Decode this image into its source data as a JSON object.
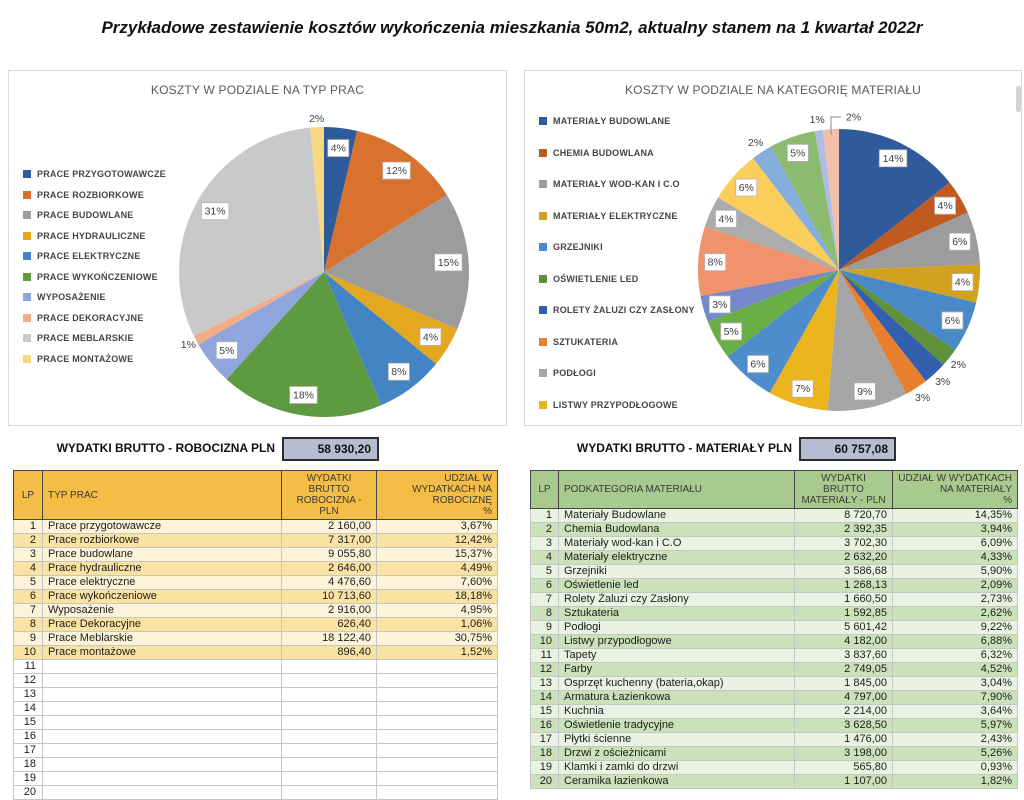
{
  "page_title": "Przykładowe zestawienie kosztów wykończenia mieszkania 50m2, aktualny stanem na 1 kwartał 2022r",
  "summaries": {
    "labor": {
      "label": "WYDATKI BRUTTO - ROBOCIZNA PLN",
      "value": "58 930,20"
    },
    "materials": {
      "label": "WYDATKI BRUTTO - MATERIAŁY PLN",
      "value": "60 757,08"
    }
  },
  "chart_data": [
    {
      "type": "pie",
      "title": "KOSZTY W PODZIALE NA TYP PRAC",
      "legend_position": "left",
      "labels": [
        "PRACE PRZYGOTOWAWCZE",
        "PRACE ROZBIORKOWE",
        "PRACE BUDOWLANE",
        "PRACE HYDRAULICZNE",
        "PRACE ELEKTRYCZNE",
        "PRACE WYKOŃCZENIOWE",
        "WYPOSAŻENIE",
        "PRACE DEKORACYJNE",
        "PRACE MEBLARSKIE",
        "PRACE MONTAŻOWE"
      ],
      "values": [
        3.67,
        12.42,
        15.37,
        4.49,
        7.6,
        18.18,
        4.95,
        1.06,
        30.75,
        1.52
      ],
      "display_labels": [
        "4%",
        "12%",
        "15%",
        "4%",
        "8%",
        "18%",
        "5%",
        "1%",
        "31%",
        "2%"
      ],
      "colors": [
        "#2f5b9d",
        "#d9722e",
        "#9c9c9c",
        "#e3a820",
        "#4384c4",
        "#5e9a41",
        "#8fa5dc",
        "#f2ac88",
        "#c9c9c9",
        "#f8d981"
      ],
      "leader_indices": []
    },
    {
      "type": "pie",
      "title": "KOSZTY W PODZIALE NA KATEGORIĘ MATERIAŁU",
      "legend_position": "left",
      "labels": [
        "Materiały Budowlane",
        "Chemia Budowlana",
        "Materiały wod-kan i C.O",
        "Materiały elektryczne",
        "Grzejniki",
        "Oświetlenie led",
        "Rolety Żaluzi czy Zasłony",
        "Sztukateria",
        "Podłogi",
        "Listwy przypodłogowe",
        "Tapety",
        "Farby",
        "Osprzęt kuchenny (bateria,okap)",
        "Armatura Łazienkowa",
        "Kuchnia",
        "Oświetlenie tradycyjne",
        "Płytki ścienne",
        "Drzwi z ościeżnicami",
        "Klamki i zamki do drzwi",
        "Ceramika łazienkowa"
      ],
      "legend_labels": [
        "MATERIAŁY BUDOWLANE",
        "CHEMIA BUDOWLANA",
        "MATERIAŁY WOD-KAN I C.O",
        "MATERIAŁY ELEKTRYCZNE",
        "GRZEJNIKI",
        "OŚWIETLENIE LED",
        "ROLETY ŻALUZI CZY ZASŁONY",
        "SZTUKATERIA",
        "PODŁOGI",
        "LISTWY PRZYPODŁOGOWE"
      ],
      "values": [
        14.35,
        3.94,
        6.09,
        4.33,
        5.9,
        2.09,
        2.73,
        2.62,
        9.22,
        6.88,
        6.32,
        4.52,
        3.04,
        7.9,
        3.64,
        5.97,
        2.43,
        5.26,
        0.93,
        1.82
      ],
      "display_labels": [
        "14%",
        "4%",
        "6%",
        "4%",
        "6%",
        "2%",
        "3%",
        "3%",
        "9%",
        "7%",
        "6%",
        "5%",
        "3%",
        "8%",
        "4%",
        "6%",
        "2%",
        "5%",
        "1%",
        "2%"
      ],
      "colors": [
        "#2f5b9d",
        "#c05a1e",
        "#9c9c9c",
        "#d2a11d",
        "#4a89c8",
        "#5f9138",
        "#3360ae",
        "#e77f2f",
        "#a6a6a6",
        "#ecb51e",
        "#4e8dcb",
        "#6aae46",
        "#7589ca",
        "#f0926c",
        "#acacac",
        "#fbcd5b",
        "#84aedc",
        "#8cbb70",
        "#afbde4",
        "#f3bfa9"
      ],
      "leader_indices": [
        19
      ]
    }
  ],
  "tables": {
    "labor": {
      "headers": {
        "lp": "LP",
        "name": "TYP PRAC",
        "value": "WYDATKI BRUTTO ROBOCIZNA - PLN",
        "share": "UDZIAŁ W WYDATKACH NA ROBOCIZNĘ",
        "share_unit": "%"
      },
      "rows": [
        {
          "lp": "1",
          "name": "Prace przygotowawcze",
          "value": "2 160,00",
          "share": "3,67%"
        },
        {
          "lp": "2",
          "name": "Prace rozbiorkowe",
          "value": "7 317,00",
          "share": "12,42%"
        },
        {
          "lp": "3",
          "name": "Prace budowlane",
          "value": "9 055,80",
          "share": "15,37%"
        },
        {
          "lp": "4",
          "name": "Prace hydrauliczne",
          "value": "2 646,00",
          "share": "4,49%"
        },
        {
          "lp": "5",
          "name": "Prace elektryczne",
          "value": "4 476,60",
          "share": "7,60%"
        },
        {
          "lp": "6",
          "name": "Prace wykończeniowe",
          "value": "10 713,60",
          "share": "18,18%"
        },
        {
          "lp": "7",
          "name": "Wyposażenie",
          "value": "2 916,00",
          "share": "4,95%"
        },
        {
          "lp": "8",
          "name": "Prace Dekoracyjne",
          "value": "626,40",
          "share": "1,06%"
        },
        {
          "lp": "9",
          "name": "Prace Meblarskie",
          "value": "18 122,40",
          "share": "30,75%"
        },
        {
          "lp": "10",
          "name": "Prace montażowe",
          "value": "896,40",
          "share": "1,52%"
        },
        {
          "lp": "11",
          "name": "",
          "value": "",
          "share": ""
        },
        {
          "lp": "12",
          "name": "",
          "value": "",
          "share": ""
        },
        {
          "lp": "13",
          "name": "",
          "value": "",
          "share": ""
        },
        {
          "lp": "14",
          "name": "",
          "value": "",
          "share": ""
        },
        {
          "lp": "15",
          "name": "",
          "value": "",
          "share": ""
        },
        {
          "lp": "16",
          "name": "",
          "value": "",
          "share": ""
        },
        {
          "lp": "17",
          "name": "",
          "value": "",
          "share": ""
        },
        {
          "lp": "18",
          "name": "",
          "value": "",
          "share": ""
        },
        {
          "lp": "19",
          "name": "",
          "value": "",
          "share": ""
        },
        {
          "lp": "20",
          "name": "",
          "value": "",
          "share": ""
        }
      ]
    },
    "materials": {
      "headers": {
        "lp": "LP",
        "name": "PODKATEGORIA MATERIAŁU",
        "value": "WYDATKI BRUTTO MATERIAŁY - PLN",
        "share": "UDZIAŁ W WYDATKACH NA MATERIAŁY",
        "share_unit": "%"
      },
      "rows": [
        {
          "lp": "1",
          "name": "Materiały Budowlane",
          "value": "8 720,70",
          "share": "14,35%"
        },
        {
          "lp": "2",
          "name": "Chemia Budowlana",
          "value": "2 392,35",
          "share": "3,94%"
        },
        {
          "lp": "3",
          "name": "Materiały wod-kan i C.O",
          "value": "3 702,30",
          "share": "6,09%"
        },
        {
          "lp": "4",
          "name": "Materiały elektryczne",
          "value": "2 632,20",
          "share": "4,33%"
        },
        {
          "lp": "5",
          "name": "Grzejniki",
          "value": "3 586,68",
          "share": "5,90%"
        },
        {
          "lp": "6",
          "name": "Oświetlenie led",
          "value": "1 268,13",
          "share": "2,09%"
        },
        {
          "lp": "7",
          "name": "Rolety Żaluzi czy Zasłony",
          "value": "1 660,50",
          "share": "2,73%"
        },
        {
          "lp": "8",
          "name": "Sztukateria",
          "value": "1 592,85",
          "share": "2,62%"
        },
        {
          "lp": "9",
          "name": "Podłogi",
          "value": "5 601,42",
          "share": "9,22%"
        },
        {
          "lp": "10",
          "name": "Listwy przypodłogowe",
          "value": "4 182,00",
          "share": "6,88%"
        },
        {
          "lp": "11",
          "name": "Tapety",
          "value": "3 837,60",
          "share": "6,32%"
        },
        {
          "lp": "12",
          "name": "Farby",
          "value": "2 749,05",
          "share": "4,52%"
        },
        {
          "lp": "13",
          "name": "Osprzęt kuchenny (bateria,okap)",
          "value": "1 845,00",
          "share": "3,04%"
        },
        {
          "lp": "14",
          "name": "Armatura Łazienkowa",
          "value": "4 797,00",
          "share": "7,90%"
        },
        {
          "lp": "15",
          "name": "Kuchnia",
          "value": "2 214,00",
          "share": "3,64%"
        },
        {
          "lp": "16",
          "name": "Oświetlenie tradycyjne",
          "value": "3 628,50",
          "share": "5,97%"
        },
        {
          "lp": "17",
          "name": "Płytki ścienne",
          "value": "1 476,00",
          "share": "2,43%"
        },
        {
          "lp": "18",
          "name": "Drzwi z ościeżnicami",
          "value": "3 198,00",
          "share": "5,26%"
        },
        {
          "lp": "19",
          "name": "Klamki i zamki do drzwi",
          "value": "565,80",
          "share": "0,93%"
        },
        {
          "lp": "20",
          "name": "Ceramika łazienkowa",
          "value": "1 107,00",
          "share": "1,82%"
        }
      ]
    }
  }
}
